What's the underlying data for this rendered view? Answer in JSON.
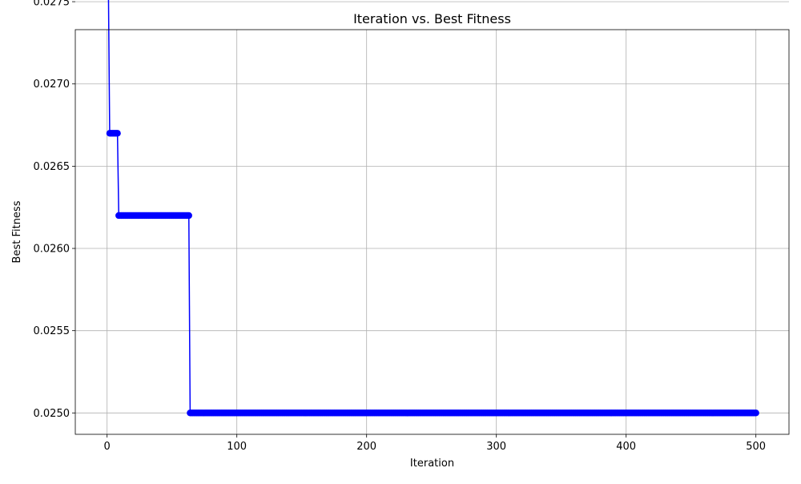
{
  "chart_data": {
    "type": "line",
    "title": "Iteration vs. Best Fitness",
    "xlabel": "Iteration",
    "ylabel": "Best Fitness",
    "xlim": [
      -24.5,
      525.5
    ],
    "ylim": [
      0.02487,
      0.02733
    ],
    "xticks": [
      0,
      100,
      200,
      300,
      400,
      500
    ],
    "yticks": [
      0.025,
      0.0255,
      0.026,
      0.0265,
      0.027,
      0.0275
    ],
    "ytick_labels": [
      "0.0250",
      "0.0255",
      "0.0260",
      "0.0265",
      "0.0270",
      "0.0275"
    ],
    "grid": true,
    "marker": "circle",
    "line_color": "#0000ff",
    "series": [
      {
        "x_range": [
          1,
          500
        ],
        "segments": [
          {
            "from": 1,
            "to": 1,
            "value": 0.0276
          },
          {
            "from": 2,
            "to": 8,
            "value": 0.0267
          },
          {
            "from": 9,
            "to": 63,
            "value": 0.0262
          },
          {
            "from": 64,
            "to": 500,
            "value": 0.025
          }
        ]
      }
    ]
  }
}
